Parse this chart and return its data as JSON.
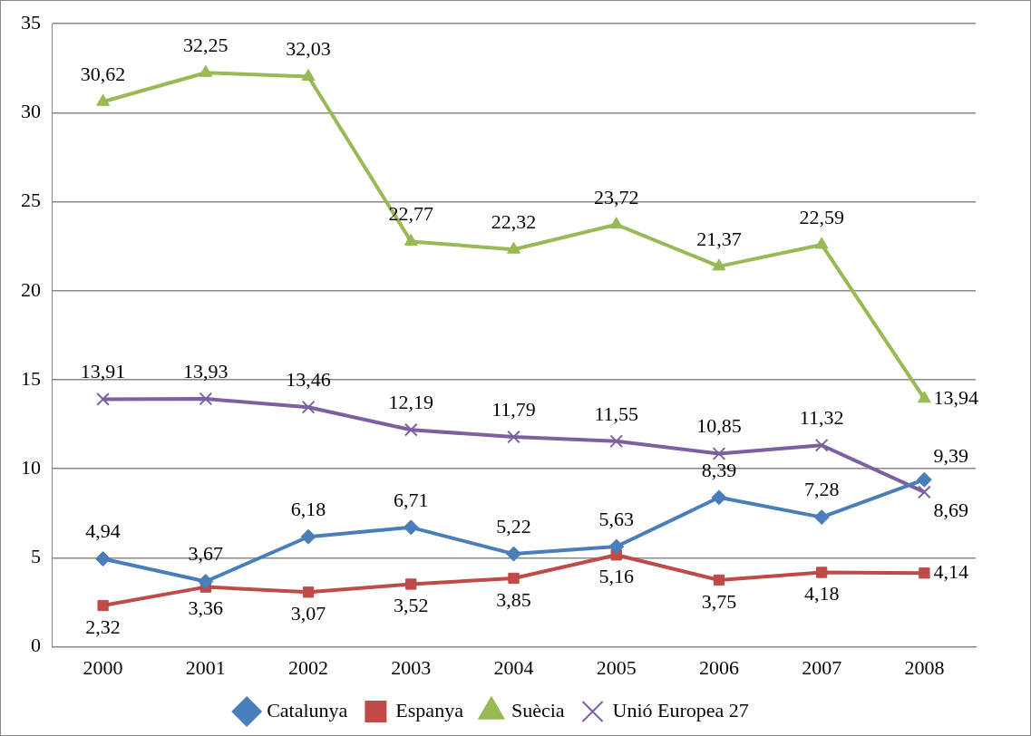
{
  "chart_data": {
    "type": "line",
    "categories": [
      "2000",
      "2001",
      "2002",
      "2003",
      "2004",
      "2005",
      "2006",
      "2007",
      "2008"
    ],
    "ylim": [
      0,
      35
    ],
    "yticks": [
      0,
      5,
      10,
      15,
      20,
      25,
      30,
      35
    ],
    "grid": "y",
    "legend": "bottom",
    "line_style": "solid",
    "series": [
      {
        "name": "Catalunya",
        "color": "#4a7ebb",
        "marker": "diamond",
        "values": [
          4.94,
          3.67,
          6.18,
          6.71,
          5.22,
          5.63,
          8.39,
          7.28,
          9.39
        ],
        "value_labels": [
          "4,94",
          "3,67",
          "6,18",
          "6,71",
          "5,22",
          "5,63",
          "8,39",
          "7,28",
          "9,39"
        ]
      },
      {
        "name": "Espanya",
        "color": "#be4b48",
        "marker": "square",
        "values": [
          2.32,
          3.36,
          3.07,
          3.52,
          3.85,
          5.16,
          3.75,
          4.18,
          4.14
        ],
        "value_labels": [
          "2,32",
          "3,36",
          "3,07",
          "3,52",
          "3,85",
          "5,16",
          "3,75",
          "4,18",
          "4,14"
        ]
      },
      {
        "name": "Suècia",
        "color": "#98b954",
        "marker": "triangle",
        "values": [
          30.62,
          32.25,
          32.03,
          22.77,
          22.32,
          23.72,
          21.37,
          22.59,
          13.94
        ],
        "value_labels": [
          "30,62",
          "32,25",
          "32,03",
          "22,77",
          "22,32",
          "23,72",
          "21,37",
          "22,59",
          "13,94"
        ]
      },
      {
        "name": "Unió Europea 27",
        "color": "#7d60a0",
        "marker": "cross",
        "values": [
          13.91,
          13.93,
          13.46,
          12.19,
          11.79,
          11.55,
          10.85,
          11.32,
          8.69
        ],
        "value_labels": [
          "13,91",
          "13,93",
          "13,46",
          "12,19",
          "11,79",
          "11,55",
          "10,85",
          "11,32",
          "8,69"
        ]
      }
    ]
  }
}
